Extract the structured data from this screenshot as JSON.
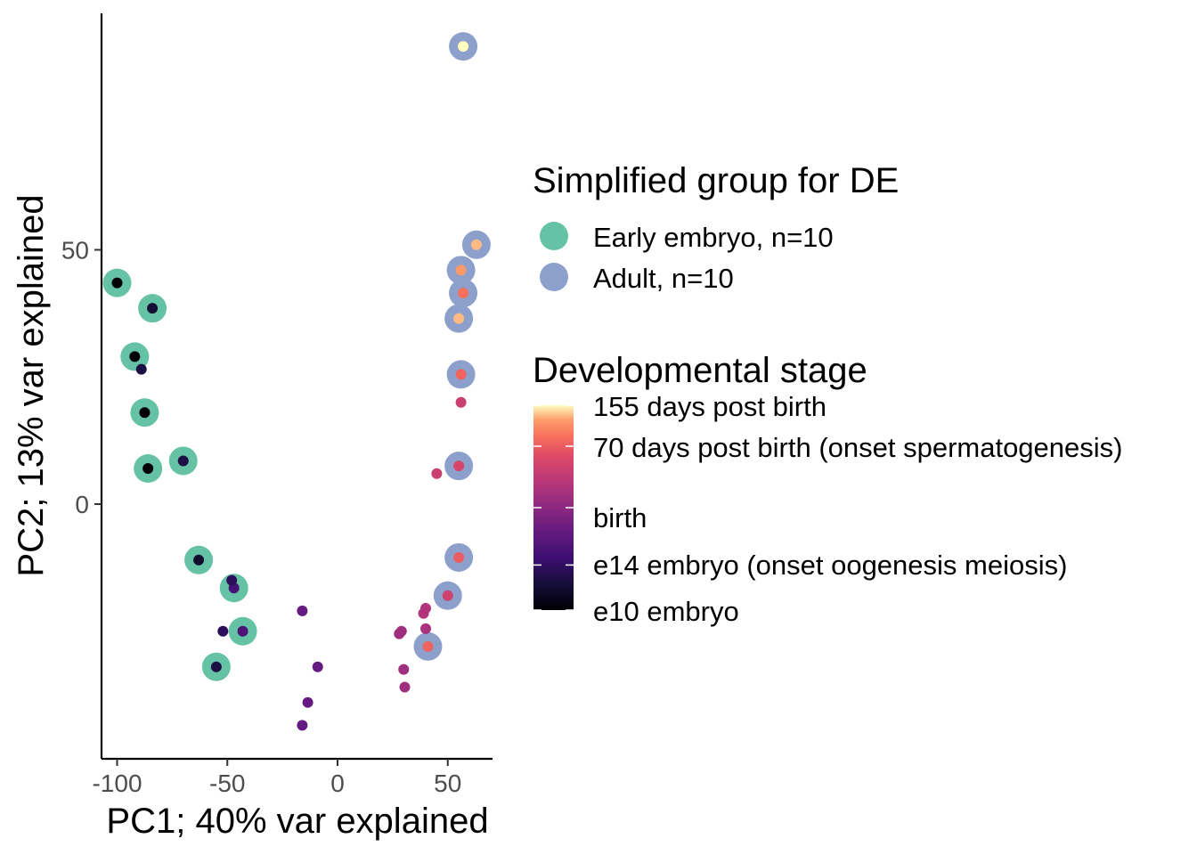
{
  "chart_data": {
    "type": "scatter",
    "xlabel": "PC1; 40% var explained",
    "ylabel": "PC2; 13% var explained",
    "x_ticks": [
      -100,
      -50,
      0,
      50
    ],
    "y_ticks": [
      0,
      50
    ],
    "x_tick_labels": [
      "-100",
      "-50",
      "0",
      "50"
    ],
    "y_tick_labels": [
      "0",
      "50"
    ],
    "xlim": [
      -108,
      70
    ],
    "ylim": [
      -50,
      96
    ],
    "grid": false,
    "legend_position": "right",
    "group_legend": {
      "title": "Simplified group for DE",
      "entries": [
        {
          "label": "Early embryo, n=10",
          "color": "#66c2a5"
        },
        {
          "label": "Adult, n=10",
          "color": "#8da0cb"
        }
      ]
    },
    "stage_legend": {
      "title": "Developmental stage",
      "colormap": "magma",
      "labels": [
        {
          "label": "155 days post birth",
          "level": 1.0
        },
        {
          "label": "70 days post birth (onset spermatogenesis)",
          "level": 0.8
        },
        {
          "label": "birth",
          "level": 0.5
        },
        {
          "label": "e14 embryo (onset oogenesis meiosis)",
          "level": 0.22
        },
        {
          "label": "e10 embryo",
          "level": 0.0
        }
      ]
    },
    "series": [
      {
        "name": "Early embryo, n=10",
        "color": "#66c2a5",
        "points": [
          {
            "x": -100,
            "y": 43.5,
            "stage": 0.0
          },
          {
            "x": -84,
            "y": 38.5,
            "stage": 0.12
          },
          {
            "x": -92,
            "y": 29,
            "stage": 0.0
          },
          {
            "x": -87.5,
            "y": 18,
            "stage": 0.0
          },
          {
            "x": -86,
            "y": 7,
            "stage": 0.0
          },
          {
            "x": -70,
            "y": 8.5,
            "stage": 0.15
          },
          {
            "x": -63,
            "y": -11,
            "stage": 0.1
          },
          {
            "x": -47,
            "y": -16.5,
            "stage": 0.28
          },
          {
            "x": -43,
            "y": -25,
            "stage": 0.3
          },
          {
            "x": -55,
            "y": -32,
            "stage": 0.15
          }
        ]
      },
      {
        "name": "Adult, n=10",
        "color": "#8da0cb",
        "points": [
          {
            "x": 57,
            "y": 90,
            "stage": 1.0
          },
          {
            "x": 63,
            "y": 51,
            "stage": 0.95
          },
          {
            "x": 56,
            "y": 46,
            "stage": 0.92
          },
          {
            "x": 57,
            "y": 41.5,
            "stage": 0.85
          },
          {
            "x": 55,
            "y": 36.5,
            "stage": 0.95
          },
          {
            "x": 56,
            "y": 25.5,
            "stage": 0.82
          },
          {
            "x": 55,
            "y": 7.5,
            "stage": 0.72
          },
          {
            "x": 55,
            "y": -10.5,
            "stage": 0.8
          },
          {
            "x": 50,
            "y": -18,
            "stage": 0.7
          },
          {
            "x": 41,
            "y": -28,
            "stage": 0.82
          }
        ]
      },
      {
        "name": "",
        "color": "",
        "points": [
          {
            "x": -89,
            "y": 26.5,
            "stage": 0.15
          },
          {
            "x": -48,
            "y": -15,
            "stage": 0.2
          },
          {
            "x": -52,
            "y": -25,
            "stage": 0.2
          },
          {
            "x": -16,
            "y": -21,
            "stage": 0.38
          },
          {
            "x": -9,
            "y": -32,
            "stage": 0.38
          },
          {
            "x": -13.5,
            "y": -39,
            "stage": 0.38
          },
          {
            "x": -16,
            "y": -43.5,
            "stage": 0.38
          },
          {
            "x": 56,
            "y": 20,
            "stage": 0.68
          },
          {
            "x": 45,
            "y": 6,
            "stage": 0.68
          },
          {
            "x": 40,
            "y": -20.5,
            "stage": 0.6
          },
          {
            "x": 39,
            "y": -21.5,
            "stage": 0.6
          },
          {
            "x": 40,
            "y": -24.5,
            "stage": 0.58
          },
          {
            "x": 28,
            "y": -25.5,
            "stage": 0.55
          },
          {
            "x": 29,
            "y": -25,
            "stage": 0.55
          },
          {
            "x": 30,
            "y": -32.5,
            "stage": 0.55
          },
          {
            "x": 30.5,
            "y": -36,
            "stage": 0.55
          }
        ]
      }
    ]
  }
}
